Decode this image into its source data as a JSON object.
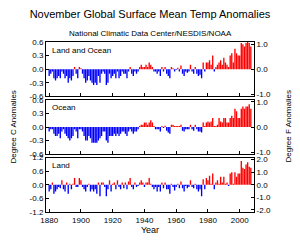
{
  "chart_data": [
    {
      "type": "bar",
      "title": "November Global Surface Mean Temp Anomalies",
      "subtitle": "National Climatic Data Center/NESDIS/NOAA",
      "ylabel": "Degree C Anomalies",
      "y2label": "Degree F Anomalies",
      "annotations": [
        "Land and Ocean"
      ],
      "grid": false,
      "tick_labels": "y",
      "xlim": [
        1878,
        2009
      ],
      "xticks": [
        1880,
        1900,
        1920,
        1940,
        1960,
        1980,
        2000
      ],
      "ylim": [
        -0.6,
        0.6
      ],
      "yticks": [
        -0.6,
        -0.3,
        {
          "value": 0,
          "label": "0.0"
        },
        0.3,
        0.6
      ],
      "y2lim": [
        -1.08,
        1.08
      ],
      "y2ticks": [
        {
          "value": -1,
          "label": "-1.0"
        },
        {
          "value": 0,
          "label": "0.0"
        },
        {
          "value": 1,
          "label": "1.0"
        }
      ],
      "x": [
        1880,
        1881,
        1882,
        1883,
        1884,
        1885,
        1886,
        1887,
        1888,
        1889,
        1890,
        1891,
        1892,
        1893,
        1894,
        1895,
        1896,
        1897,
        1898,
        1899,
        1900,
        1901,
        1902,
        1903,
        1904,
        1905,
        1906,
        1907,
        1908,
        1909,
        1910,
        1911,
        1912,
        1913,
        1914,
        1915,
        1916,
        1917,
        1918,
        1919,
        1920,
        1921,
        1922,
        1923,
        1924,
        1925,
        1926,
        1927,
        1928,
        1929,
        1930,
        1931,
        1932,
        1933,
        1934,
        1935,
        1936,
        1937,
        1938,
        1939,
        1940,
        1941,
        1942,
        1943,
        1944,
        1945,
        1946,
        1947,
        1948,
        1949,
        1950,
        1951,
        1952,
        1953,
        1954,
        1955,
        1956,
        1957,
        1958,
        1959,
        1960,
        1961,
        1962,
        1963,
        1964,
        1965,
        1966,
        1967,
        1968,
        1969,
        1970,
        1971,
        1972,
        1973,
        1974,
        1975,
        1976,
        1977,
        1978,
        1979,
        1980,
        1981,
        1982,
        1983,
        1984,
        1985,
        1986,
        1987,
        1988,
        1989,
        1990,
        1991,
        1992,
        1993,
        1994,
        1995,
        1996,
        1997,
        1998,
        1999,
        2000,
        2001,
        2002,
        2003,
        2004,
        2005,
        2006,
        2007
      ],
      "values": [
        -0.15,
        -0.1,
        -0.05,
        -0.2,
        -0.25,
        -0.2,
        -0.15,
        -0.2,
        -0.05,
        -0.1,
        -0.2,
        -0.15,
        -0.3,
        -0.2,
        -0.25,
        -0.15,
        0.05,
        -0.1,
        -0.2,
        0.05,
        0.02,
        -0.1,
        -0.2,
        -0.3,
        -0.25,
        -0.15,
        -0.25,
        -0.3,
        -0.35,
        -0.3,
        -0.35,
        -0.15,
        -0.3,
        -0.1,
        -0.05,
        -0.1,
        -0.35,
        -0.3,
        -0.1,
        -0.2,
        -0.15,
        -0.1,
        -0.2,
        -0.05,
        -0.2,
        -0.15,
        -0.05,
        -0.1,
        -0.1,
        -0.2,
        -0.05,
        0.05,
        -0.1,
        -0.15,
        -0.05,
        -0.1,
        -0.05,
        0.05,
        0.1,
        0.05,
        0.05,
        0.1,
        0.05,
        0.15,
        0.1,
        0.05,
        -0.05,
        -0.05,
        -0.1,
        -0.05,
        -0.15,
        0.05,
        -0.05,
        0.05,
        -0.1,
        -0.15,
        -0.2,
        0.05,
        0.02,
        -0.05,
        -0.02,
        0.03,
        -0.05,
        0.08,
        -0.1,
        -0.15,
        -0.05,
        -0.08,
        -0.05,
        0.1,
        -0.05,
        -0.1,
        0.05,
        -0.1,
        -0.15,
        -0.12,
        -0.2,
        0.15,
        -0.05,
        0.15,
        0.15,
        0.2,
        0.1,
        0.3,
        -0.05,
        0.05,
        0.1,
        0.15,
        0.2,
        0.1,
        0.25,
        0.15,
        0.1,
        0.05,
        0.3,
        0.35,
        0.15,
        0.45,
        0.35,
        0.3,
        0.3,
        0.58,
        0.55,
        0.5,
        0.58,
        0.6,
        0.58,
        0.5
      ],
      "colors": [
        "blue",
        "blue",
        "blue",
        "blue",
        "blue",
        "blue",
        "blue",
        "blue",
        "blue",
        "blue",
        "blue",
        "blue",
        "blue",
        "blue",
        "blue",
        "blue",
        "red",
        "blue",
        "blue",
        "red",
        "red",
        "blue",
        "blue",
        "blue",
        "blue",
        "blue",
        "blue",
        "blue",
        "blue",
        "blue",
        "blue",
        "blue",
        "blue",
        "blue",
        "blue",
        "blue",
        "blue",
        "blue",
        "blue",
        "blue",
        "blue",
        "blue",
        "blue",
        "blue",
        "blue",
        "blue",
        "blue",
        "blue",
        "blue",
        "blue",
        "blue",
        "red",
        "blue",
        "blue",
        "blue",
        "blue",
        "blue",
        "red",
        "red",
        "red",
        "red",
        "red",
        "red",
        "red",
        "red",
        "red",
        "blue",
        "blue",
        "blue",
        "blue",
        "blue",
        "red",
        "blue",
        "red",
        "blue",
        "blue",
        "blue",
        "red",
        "red",
        "blue",
        "blue",
        "red",
        "blue",
        "red",
        "blue",
        "blue",
        "blue",
        "blue",
        "blue",
        "red",
        "blue",
        "blue",
        "red",
        "blue",
        "blue",
        "blue",
        "blue",
        "red",
        "blue",
        "red",
        "red",
        "red",
        "red",
        "red",
        "blue",
        "red",
        "red",
        "red",
        "red",
        "red",
        "red",
        "red",
        "red",
        "red",
        "red",
        "red",
        "red",
        "red",
        "red",
        "red",
        "red",
        "red",
        "red",
        "red",
        "red",
        "red",
        "red",
        "red"
      ]
    },
    {
      "type": "bar",
      "annotations": [
        "Ocean"
      ],
      "grid": false,
      "tick_labels": "y",
      "xlim": [
        1878,
        2009
      ],
      "xticks": [
        1880,
        1900,
        1920,
        1940,
        1960,
        1980,
        2000
      ],
      "ylim": [
        -0.6,
        0.6
      ],
      "yticks": [
        -0.6,
        -0.3,
        {
          "value": 0,
          "label": "0.0"
        },
        0.3,
        0.6
      ],
      "y2lim": [
        -1.08,
        1.08
      ],
      "y2ticks": [
        {
          "value": -1,
          "label": "-1.0"
        },
        {
          "value": 0,
          "label": "0.0"
        },
        {
          "value": 1,
          "label": "1.0"
        }
      ],
      "x": [
        1880,
        1881,
        1882,
        1883,
        1884,
        1885,
        1886,
        1887,
        1888,
        1889,
        1890,
        1891,
        1892,
        1893,
        1894,
        1895,
        1896,
        1897,
        1898,
        1899,
        1900,
        1901,
        1902,
        1903,
        1904,
        1905,
        1906,
        1907,
        1908,
        1909,
        1910,
        1911,
        1912,
        1913,
        1914,
        1915,
        1916,
        1917,
        1918,
        1919,
        1920,
        1921,
        1922,
        1923,
        1924,
        1925,
        1926,
        1927,
        1928,
        1929,
        1930,
        1931,
        1932,
        1933,
        1934,
        1935,
        1936,
        1937,
        1938,
        1939,
        1940,
        1941,
        1942,
        1943,
        1944,
        1945,
        1946,
        1947,
        1948,
        1949,
        1950,
        1951,
        1952,
        1953,
        1954,
        1955,
        1956,
        1957,
        1958,
        1959,
        1960,
        1961,
        1962,
        1963,
        1964,
        1965,
        1966,
        1967,
        1968,
        1969,
        1970,
        1971,
        1972,
        1973,
        1974,
        1975,
        1976,
        1977,
        1978,
        1979,
        1980,
        1981,
        1982,
        1983,
        1984,
        1985,
        1986,
        1987,
        1988,
        1989,
        1990,
        1991,
        1992,
        1993,
        1994,
        1995,
        1996,
        1997,
        1998,
        1999,
        2000,
        2001,
        2002,
        2003,
        2004,
        2005,
        2006,
        2007
      ],
      "values": [
        -0.1,
        -0.05,
        -0.05,
        -0.15,
        -0.2,
        -0.2,
        -0.15,
        -0.25,
        -0.1,
        -0.05,
        -0.15,
        -0.2,
        -0.25,
        -0.3,
        -0.25,
        -0.2,
        -0.05,
        -0.1,
        -0.25,
        -0.05,
        -0.05,
        -0.1,
        -0.2,
        -0.3,
        -0.3,
        -0.2,
        -0.25,
        -0.35,
        -0.35,
        -0.35,
        -0.35,
        -0.3,
        -0.25,
        -0.2,
        -0.1,
        -0.1,
        -0.3,
        -0.35,
        -0.2,
        -0.2,
        -0.2,
        -0.15,
        -0.2,
        -0.15,
        -0.2,
        -0.15,
        -0.1,
        -0.1,
        -0.15,
        -0.2,
        -0.1,
        -0.05,
        -0.1,
        -0.15,
        -0.1,
        -0.1,
        -0.05,
        0.02,
        0.05,
        0.05,
        0.1,
        0.1,
        0.05,
        0.1,
        0.15,
        0.1,
        0.02,
        -0.05,
        -0.05,
        -0.05,
        -0.1,
        0.02,
        -0.02,
        0.03,
        -0.08,
        -0.12,
        -0.15,
        0.05,
        0.05,
        0.02,
        0.02,
        0.02,
        0.02,
        0.05,
        -0.08,
        -0.1,
        -0.05,
        -0.05,
        -0.05,
        0.05,
        -0.05,
        -0.08,
        0.05,
        -0.05,
        -0.1,
        -0.1,
        -0.12,
        0.1,
        0.02,
        0.1,
        0.12,
        0.1,
        0.12,
        0.2,
        0.02,
        0.02,
        0.05,
        0.2,
        0.12,
        0.1,
        0.2,
        0.2,
        0.1,
        0.1,
        0.2,
        0.25,
        0.2,
        0.4,
        0.35,
        0.2,
        0.2,
        0.4,
        0.45,
        0.4,
        0.45,
        0.45,
        0.5,
        0.4
      ],
      "colors": [
        "blue",
        "blue",
        "blue",
        "blue",
        "blue",
        "blue",
        "blue",
        "blue",
        "blue",
        "blue",
        "blue",
        "blue",
        "blue",
        "blue",
        "blue",
        "blue",
        "blue",
        "blue",
        "blue",
        "blue",
        "blue",
        "blue",
        "blue",
        "blue",
        "blue",
        "blue",
        "blue",
        "blue",
        "blue",
        "blue",
        "blue",
        "blue",
        "blue",
        "blue",
        "blue",
        "blue",
        "blue",
        "blue",
        "blue",
        "blue",
        "blue",
        "blue",
        "blue",
        "blue",
        "blue",
        "blue",
        "blue",
        "blue",
        "blue",
        "blue",
        "blue",
        "blue",
        "blue",
        "blue",
        "blue",
        "blue",
        "blue",
        "red",
        "red",
        "red",
        "red",
        "red",
        "red",
        "red",
        "red",
        "red",
        "red",
        "blue",
        "blue",
        "blue",
        "blue",
        "red",
        "blue",
        "red",
        "blue",
        "blue",
        "blue",
        "red",
        "red",
        "red",
        "red",
        "red",
        "red",
        "red",
        "blue",
        "blue",
        "blue",
        "blue",
        "blue",
        "red",
        "blue",
        "blue",
        "red",
        "blue",
        "blue",
        "blue",
        "blue",
        "red",
        "red",
        "red",
        "red",
        "red",
        "red",
        "red",
        "red",
        "red",
        "red",
        "red",
        "red",
        "red",
        "red",
        "red",
        "red",
        "red",
        "red",
        "red",
        "red",
        "red",
        "red",
        "red",
        "red",
        "red",
        "red",
        "red",
        "red",
        "red",
        "red",
        "red"
      ]
    },
    {
      "type": "bar",
      "annotations": [
        "Land"
      ],
      "xlabel": "Year",
      "grid": false,
      "xlim": [
        1878,
        2009
      ],
      "xticks": [
        1880,
        1900,
        1920,
        1940,
        1960,
        1980,
        2000
      ],
      "ylim": [
        -1.2,
        1.2
      ],
      "yticks": [
        -1.2,
        -0.6,
        {
          "value": 0,
          "label": "0.0"
        },
        0.6,
        1.2
      ],
      "y2lim": [
        -2.16,
        2.16
      ],
      "y2ticks": [
        {
          "value": -2,
          "label": "-2.0"
        },
        {
          "value": -1,
          "label": "-1.0"
        },
        {
          "value": 0,
          "label": "0.0"
        },
        {
          "value": 1,
          "label": "1.0"
        },
        {
          "value": 2,
          "label": "2.0"
        }
      ],
      "x": [
        1880,
        1881,
        1882,
        1883,
        1884,
        1885,
        1886,
        1887,
        1888,
        1889,
        1890,
        1891,
        1892,
        1893,
        1894,
        1895,
        1896,
        1897,
        1898,
        1899,
        1900,
        1901,
        1902,
        1903,
        1904,
        1905,
        1906,
        1907,
        1908,
        1909,
        1910,
        1911,
        1912,
        1913,
        1914,
        1915,
        1916,
        1917,
        1918,
        1919,
        1920,
        1921,
        1922,
        1923,
        1924,
        1925,
        1926,
        1927,
        1928,
        1929,
        1930,
        1931,
        1932,
        1933,
        1934,
        1935,
        1936,
        1937,
        1938,
        1939,
        1940,
        1941,
        1942,
        1943,
        1944,
        1945,
        1946,
        1947,
        1948,
        1949,
        1950,
        1951,
        1952,
        1953,
        1954,
        1955,
        1956,
        1957,
        1958,
        1959,
        1960,
        1961,
        1962,
        1963,
        1964,
        1965,
        1966,
        1967,
        1968,
        1969,
        1970,
        1971,
        1972,
        1973,
        1974,
        1975,
        1976,
        1977,
        1978,
        1979,
        1980,
        1981,
        1982,
        1983,
        1984,
        1985,
        1986,
        1987,
        1988,
        1989,
        1990,
        1991,
        1992,
        1993,
        1994,
        1995,
        1996,
        1997,
        1998,
        1999,
        2000,
        2001,
        2002,
        2003,
        2004,
        2005,
        2006,
        2007
      ],
      "values": [
        -0.3,
        -0.2,
        0.1,
        -0.4,
        -0.3,
        -0.2,
        -0.1,
        -0.15,
        0.2,
        -0.2,
        -0.3,
        0.1,
        -0.4,
        0.05,
        -0.2,
        0.05,
        0.3,
        -0.1,
        -0.1,
        0.3,
        0.2,
        -0.1,
        -0.2,
        -0.3,
        -0.1,
        0.05,
        -0.3,
        -0.2,
        -0.3,
        -0.2,
        -0.4,
        0.1,
        -0.5,
        0.1,
        0.1,
        -0.1,
        -0.5,
        -0.2,
        0.2,
        -0.3,
        0.05,
        0.1,
        -0.2,
        0.2,
        -0.1,
        -0.2,
        0.1,
        -0.15,
        0.1,
        -0.2,
        0.15,
        0.3,
        -0.1,
        -0.2,
        0.1,
        -0.1,
        -0.05,
        0.1,
        0.2,
        0.1,
        -0.1,
        0.1,
        0.1,
        0.3,
        0.05,
        -0.1,
        -0.2,
        -0.1,
        -0.3,
        -0.1,
        -0.3,
        0.1,
        -0.15,
        0.1,
        -0.2,
        -0.2,
        -0.4,
        0.05,
        -0.1,
        -0.25,
        -0.1,
        0.05,
        -0.15,
        0.15,
        -0.15,
        -0.3,
        -0.05,
        -0.15,
        -0.1,
        0.2,
        -0.1,
        -0.15,
        0.05,
        -0.2,
        -0.3,
        -0.2,
        -0.5,
        0.25,
        -0.2,
        0.3,
        0.2,
        0.4,
        0.05,
        0.5,
        -0.2,
        0.1,
        0.2,
        0.05,
        0.35,
        0.1,
        0.35,
        0.05,
        0.1,
        -0.05,
        0.5,
        0.55,
        0.05,
        0.55,
        0.35,
        0.5,
        0.5,
        1.05,
        0.75,
        0.7,
        0.9,
        1.0,
        0.8,
        0.75
      ],
      "colors": [
        "blue",
        "blue",
        "red",
        "blue",
        "blue",
        "blue",
        "blue",
        "blue",
        "red",
        "blue",
        "blue",
        "red",
        "blue",
        "red",
        "blue",
        "red",
        "red",
        "blue",
        "blue",
        "red",
        "red",
        "blue",
        "blue",
        "blue",
        "blue",
        "red",
        "blue",
        "blue",
        "blue",
        "blue",
        "blue",
        "red",
        "blue",
        "red",
        "red",
        "blue",
        "blue",
        "blue",
        "red",
        "blue",
        "red",
        "red",
        "blue",
        "red",
        "blue",
        "blue",
        "red",
        "blue",
        "red",
        "blue",
        "red",
        "red",
        "blue",
        "blue",
        "red",
        "blue",
        "blue",
        "red",
        "red",
        "red",
        "blue",
        "red",
        "red",
        "red",
        "red",
        "blue",
        "blue",
        "blue",
        "blue",
        "blue",
        "blue",
        "red",
        "blue",
        "red",
        "blue",
        "blue",
        "blue",
        "red",
        "blue",
        "blue",
        "blue",
        "red",
        "blue",
        "red",
        "blue",
        "blue",
        "blue",
        "blue",
        "blue",
        "red",
        "blue",
        "blue",
        "red",
        "blue",
        "blue",
        "blue",
        "blue",
        "red",
        "blue",
        "red",
        "red",
        "red",
        "red",
        "red",
        "blue",
        "red",
        "red",
        "red",
        "red",
        "red",
        "red",
        "red",
        "red",
        "blue",
        "red",
        "red",
        "red",
        "red",
        "red",
        "red",
        "red",
        "red",
        "red",
        "red",
        "red",
        "red",
        "red",
        "red"
      ]
    }
  ]
}
